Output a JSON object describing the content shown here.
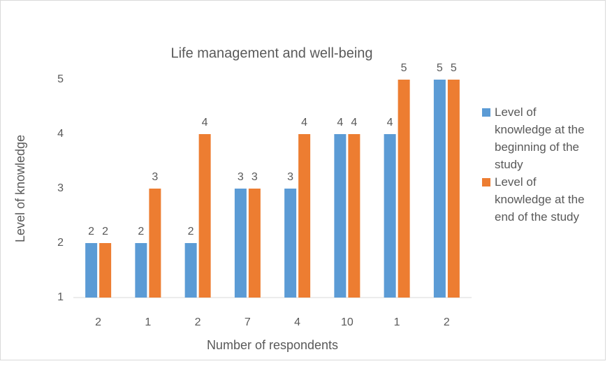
{
  "chart_data": {
    "type": "bar",
    "title": "Life management and well-being",
    "x_label": "Number of respondents",
    "y_label": "Level of knowledge",
    "categories": [
      "2",
      "1",
      "2",
      "7",
      "4",
      "10",
      "1",
      "2"
    ],
    "series": [
      {
        "name": "Level of knowledge at the beginning of the study",
        "color": "#5b9bd5",
        "values": [
          2,
          2,
          2,
          3,
          3,
          4,
          4,
          5
        ]
      },
      {
        "name": "Level of knowledge at the end of the study",
        "color": "#ed7d31",
        "values": [
          2,
          3,
          4,
          3,
          4,
          4,
          5,
          5
        ]
      }
    ],
    "ylim": [
      1,
      5
    ],
    "yticks": [
      1,
      2,
      3,
      4,
      5
    ],
    "grid": false,
    "legend": "right"
  }
}
